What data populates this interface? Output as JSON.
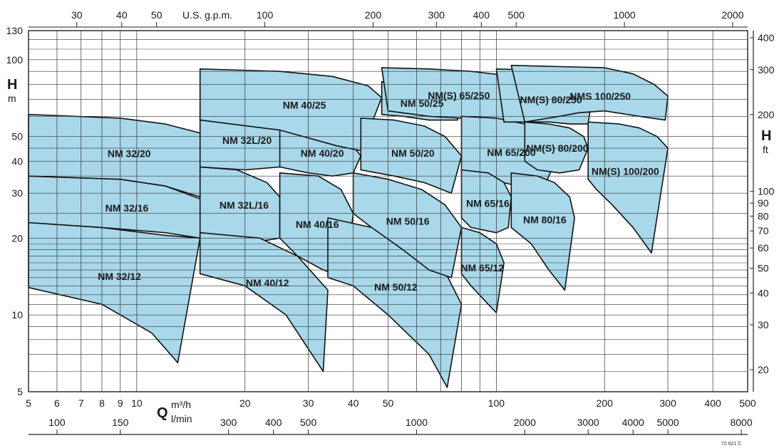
{
  "chart_data": {
    "type": "area",
    "title": "",
    "x_axis_bottom": {
      "label": "Q",
      "unit": "m³/h",
      "scale": "log",
      "range": [
        5,
        500
      ],
      "ticks": [
        5,
        6,
        7,
        8,
        9,
        10,
        20,
        30,
        40,
        50,
        100,
        200,
        300,
        400,
        500
      ],
      "tick_labels": [
        "5",
        "6",
        "7",
        "8",
        "9",
        "10",
        "20",
        "30",
        "40",
        "50",
        "100",
        "200",
        "300",
        "400",
        "500"
      ]
    },
    "x_axis_bottom_secondary": {
      "unit": "l/min",
      "ticks": [
        100,
        150,
        300,
        400,
        500,
        1000,
        2000,
        3000,
        4000,
        5000,
        8000
      ],
      "tick_labels": [
        "100",
        "150",
        "300",
        "400",
        "500",
        "1000",
        "2000",
        "3000",
        "4000",
        "5000",
        "8000"
      ]
    },
    "x_axis_top": {
      "unit": "U.S. g.p.m.",
      "ticks": [
        30,
        40,
        50,
        100,
        200,
        300,
        400,
        500,
        1000,
        2000
      ],
      "tick_labels": [
        "30",
        "40",
        "50",
        "100",
        "200",
        "300",
        "400",
        "500",
        "1000",
        "2000"
      ]
    },
    "y_axis_left": {
      "label": "H",
      "unit": "m",
      "scale": "log",
      "range": [
        5,
        130
      ],
      "ticks": [
        5,
        10,
        20,
        30,
        40,
        50,
        100,
        130
      ],
      "tick_labels": [
        "5",
        "10",
        "20",
        "30",
        "40",
        "50",
        "100",
        "130"
      ]
    },
    "y_axis_right": {
      "label": "H",
      "unit": "ft",
      "ticks": [
        20,
        30,
        40,
        50,
        60,
        70,
        80,
        90,
        100,
        200,
        300,
        400
      ],
      "tick_labels": [
        "20",
        "30",
        "40",
        "50",
        "60",
        "70",
        "80",
        "90",
        "100",
        "200",
        "300",
        "400"
      ]
    },
    "grid": true,
    "fill_color": "#a8d8ea",
    "series": [
      {
        "name": "NM 32/12",
        "q_range": [
          5,
          15
        ],
        "h_range": [
          6.5,
          23
        ]
      },
      {
        "name": "NM 32/16",
        "q_range": [
          5,
          15.5
        ],
        "h_range": [
          20,
          35
        ]
      },
      {
        "name": "NM 32/20",
        "q_range": [
          5,
          15.5
        ],
        "h_range": [
          29,
          61
        ]
      },
      {
        "name": "NM 32L/16",
        "q_range": [
          15,
          25
        ],
        "h_range": [
          20,
          38
        ]
      },
      {
        "name": "NM 32L/20",
        "q_range": [
          15,
          26
        ],
        "h_range": [
          30,
          63
        ]
      },
      {
        "name": "NM 40/12",
        "q_range": [
          15,
          34
        ],
        "h_range": [
          6,
          21
        ]
      },
      {
        "name": "NM 40/16",
        "q_range": [
          25,
          40
        ],
        "h_range": [
          14,
          36
        ]
      },
      {
        "name": "NM 40/20",
        "q_range": [
          25,
          42
        ],
        "h_range": [
          23,
          58
        ]
      },
      {
        "name": "NM 40/25",
        "q_range": [
          15,
          48
        ],
        "h_range": [
          40,
          92
        ]
      },
      {
        "name": "NM 50/12",
        "q_range": [
          34,
          80
        ],
        "h_range": [
          5,
          24
        ]
      },
      {
        "name": "NM 50/16",
        "q_range": [
          40,
          80
        ],
        "h_range": [
          14,
          36
        ]
      },
      {
        "name": "NM 50/20",
        "q_range": [
          42,
          80
        ],
        "h_range": [
          24,
          59
        ]
      },
      {
        "name": "NM 50/25",
        "q_range": [
          48,
          80
        ],
        "h_range": [
          43,
          82
        ]
      },
      {
        "name": "NM(S) 65/250",
        "q_range": [
          48,
          120
        ],
        "h_range": [
          55,
          93
        ]
      },
      {
        "name": "NM 65/200",
        "q_range": [
          80,
          150
        ],
        "h_range": [
          30,
          60
        ]
      },
      {
        "name": "NM 65/16",
        "q_range": [
          80,
          110
        ],
        "h_range": [
          22,
          37
        ]
      },
      {
        "name": "NM 65/12",
        "q_range": [
          80,
          100
        ],
        "h_range": [
          10,
          22
        ]
      },
      {
        "name": "NM(S) 80/250",
        "q_range": [
          100,
          180
        ],
        "h_range": [
          52,
          92
        ]
      },
      {
        "name": "NM(S) 80/200",
        "q_range": [
          120,
          180
        ],
        "h_range": [
          34,
          57
        ]
      },
      {
        "name": "NM 80/16",
        "q_range": [
          110,
          160
        ],
        "h_range": [
          12,
          36
        ]
      },
      {
        "name": "NMS 100/250",
        "q_range": [
          110,
          300
        ],
        "h_range": [
          53,
          95
        ]
      },
      {
        "name": "NM(S) 100/200",
        "q_range": [
          180,
          300
        ],
        "h_range": [
          17,
          57
        ]
      }
    ]
  },
  "labels": {
    "q_symbol": "Q",
    "q_unit_m3h": "m³/h",
    "q_unit_lmin": "l/min",
    "top_unit": "U.S. g.p.m.",
    "h_left": "H",
    "h_left_unit": "m",
    "h_right": "H",
    "h_right_unit": "ft",
    "code": "72 821 C"
  }
}
